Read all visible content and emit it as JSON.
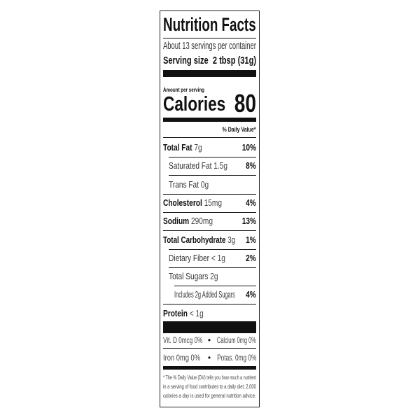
{
  "title": "Nutrition Facts",
  "servings": "About 13 servings per container",
  "serving_size_label": "Serving size",
  "serving_size_value": "2 tbsp (31g)",
  "amount_per_serving": "Amount per serving",
  "calories_label": "Calories",
  "calories_value": "80",
  "dv_header": "% Daily Value*",
  "nutrients": [
    {
      "name": "Total Fat",
      "amount": "7g",
      "dv": "10%"
    },
    {
      "name": "Saturated Fat",
      "amount": "1.5g",
      "dv": "8%"
    },
    {
      "name": "Trans Fat",
      "amount": "0g",
      "dv": ""
    },
    {
      "name": "Cholesterol",
      "amount": "15mg",
      "dv": "4%"
    },
    {
      "name": "Sodium",
      "amount": "290mg",
      "dv": "13%"
    },
    {
      "name": "Total Carbohydrate",
      "amount": "3g",
      "dv": "1%"
    },
    {
      "name": "Dietary Fiber",
      "amount": "< 1g",
      "dv": "2%"
    },
    {
      "name": "Total Sugars",
      "amount": "2g",
      "dv": ""
    },
    {
      "name": "Includes 2g Added Sugars",
      "amount": "",
      "dv": "4%"
    },
    {
      "name": "Protein",
      "amount": "< 1g",
      "dv": ""
    }
  ],
  "micros": [
    "Vit. D 0mcg 0%",
    "Calcium 0mg 0%",
    "Iron 0mg 0%",
    "Potas. 0mg 0%"
  ],
  "bullet": "•",
  "footnote": [
    "* The % Daily Value (DV) tells you how much a nutrient",
    "in a serving of food contributes to a daily diet. 2,000",
    "calories a day is used for general nutrition advice."
  ]
}
